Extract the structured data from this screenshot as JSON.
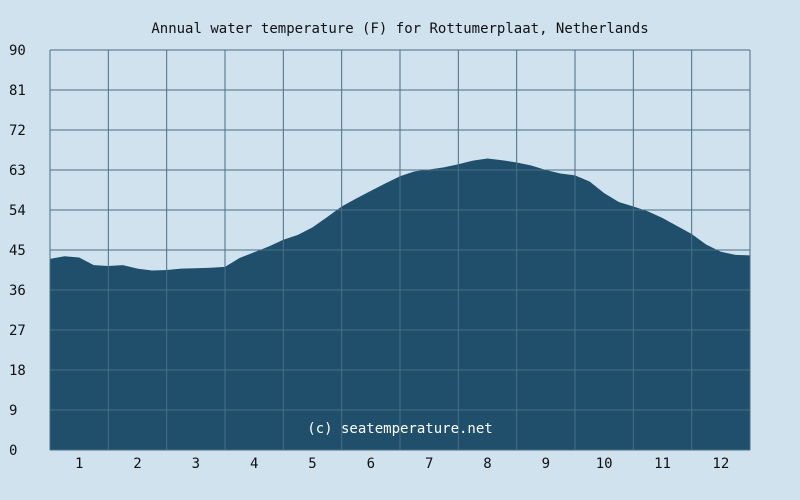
{
  "chart_data": {
    "type": "area",
    "title": "Annual water temperature (F) for Rottumerplaat, Netherlands",
    "watermark": "(c) seatemperature.net",
    "xlabel": "",
    "ylabel": "",
    "ylim": [
      0,
      90
    ],
    "xlim": [
      0.5,
      12.5
    ],
    "yticks": [
      0,
      9,
      18,
      27,
      36,
      45,
      54,
      63,
      72,
      81,
      90
    ],
    "xticks": [
      1,
      2,
      3,
      4,
      5,
      6,
      7,
      8,
      9,
      10,
      11,
      12
    ],
    "grid": true,
    "colors": {
      "background": "#cfe2ee",
      "fill": "#1f4f6b",
      "grid": "#4a6f86"
    },
    "x": [
      0.5,
      0.75,
      1.0,
      1.25,
      1.5,
      1.75,
      2.0,
      2.25,
      2.5,
      2.75,
      3.0,
      3.25,
      3.5,
      3.75,
      4.0,
      4.25,
      4.5,
      4.75,
      5.0,
      5.25,
      5.5,
      5.75,
      6.0,
      6.25,
      6.5,
      6.75,
      7.0,
      7.25,
      7.5,
      7.75,
      8.0,
      8.25,
      8.5,
      8.75,
      9.0,
      9.25,
      9.5,
      9.75,
      10.0,
      10.25,
      10.5,
      10.75,
      11.0,
      11.25,
      11.5,
      11.75,
      12.0,
      12.25,
      12.5
    ],
    "series": [
      {
        "values": [
          43.0,
          43.6,
          43.3,
          41.6,
          41.4,
          41.6,
          40.8,
          40.4,
          40.5,
          40.8,
          40.9,
          41.0,
          41.2,
          43.2,
          44.5,
          45.8,
          47.3,
          48.4,
          50.1,
          52.4,
          54.8,
          56.6,
          58.3,
          60.0,
          61.6,
          62.7,
          63.1,
          63.6,
          64.3,
          65.1,
          65.6,
          65.2,
          64.7,
          64.0,
          63.0,
          62.2,
          61.8,
          60.4,
          57.8,
          55.8,
          54.8,
          53.7,
          52.2,
          50.4,
          48.6,
          46.2,
          44.6,
          43.9,
          43.8
        ]
      }
    ]
  }
}
